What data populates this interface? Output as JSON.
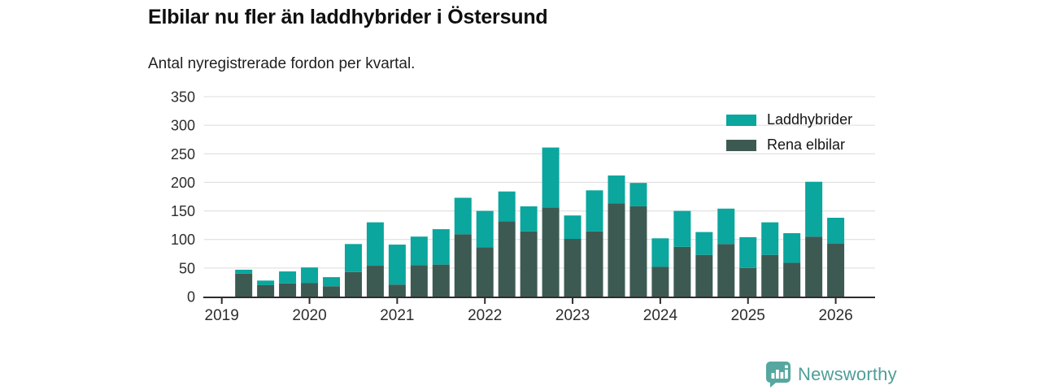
{
  "chart_data": {
    "type": "bar",
    "stacked": true,
    "title": "Elbilar nu fler än laddhybrider i Östersund",
    "subtitle": "Antal nyregistrerade fordon per kvartal.",
    "x": [
      "2019 Q2",
      "2019 Q3",
      "2019 Q4",
      "2020 Q1",
      "2020 Q2",
      "2020 Q3",
      "2020 Q4",
      "2021 Q1",
      "2021 Q2",
      "2021 Q3",
      "2021 Q4",
      "2022 Q1",
      "2022 Q2",
      "2022 Q3",
      "2022 Q4",
      "2023 Q1",
      "2023 Q2",
      "2023 Q3",
      "2023 Q4",
      "2024 Q1",
      "2024 Q2",
      "2024 Q3",
      "2024 Q4",
      "2025 Q1",
      "2025 Q2",
      "2025 Q3",
      "2025 Q4",
      "2026 Q1"
    ],
    "series": [
      {
        "name": "Laddhybrider",
        "color": "#0ba69e",
        "values": [
          7,
          8,
          21,
          27,
          16,
          49,
          76,
          70,
          50,
          62,
          64,
          64,
          52,
          44,
          105,
          41,
          72,
          49,
          41,
          50,
          63,
          40,
          62,
          54,
          57,
          52,
          96,
          45
        ]
      },
      {
        "name": "Rena elbilar",
        "color": "#3d5a52",
        "values": [
          40,
          20,
          23,
          24,
          18,
          43,
          54,
          21,
          55,
          56,
          109,
          86,
          132,
          114,
          156,
          101,
          114,
          163,
          158,
          52,
          87,
          73,
          92,
          50,
          73,
          59,
          105,
          93
        ]
      }
    ],
    "stack_note": "Rena elbilar (dark) is the bottom segment, Laddhybrider (teal) stacked on top",
    "ylim": [
      0,
      350
    ],
    "yticks": [
      0,
      50,
      100,
      150,
      200,
      250,
      300,
      350
    ],
    "xticks": [
      "2019",
      "2020",
      "2021",
      "2022",
      "2023",
      "2024",
      "2025",
      "2026"
    ],
    "grid": true,
    "legend_position": "top-right"
  },
  "colors": {
    "laddhybrider": "#0ba69e",
    "rena_elbilar": "#3d5a52",
    "gridline": "#dcdcdc",
    "axis": "#2d2d2d",
    "brand_teal": "#4f9e98"
  },
  "footer": {
    "brand": "Newsworthy",
    "logo_icon": "bar-chart-speech-bubble-icon"
  }
}
